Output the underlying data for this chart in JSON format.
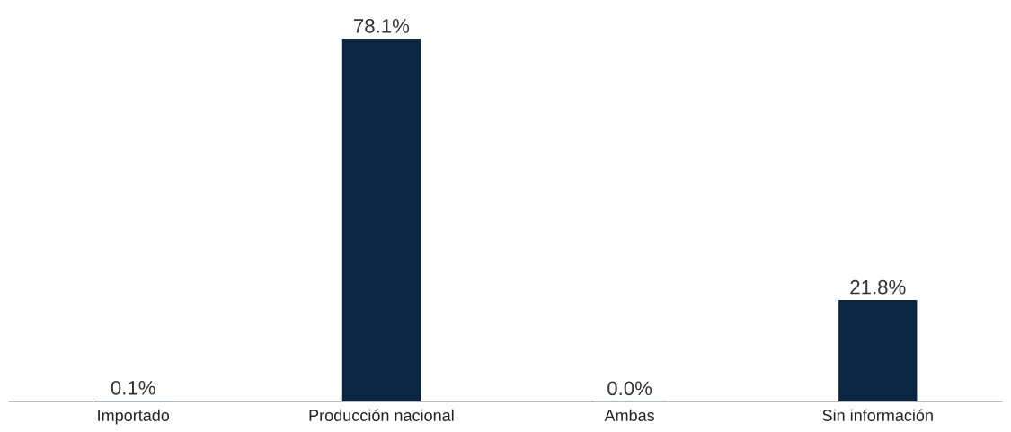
{
  "chart_data": {
    "type": "bar",
    "categories": [
      "Importado",
      "Producción nacional",
      "Ambas",
      "Sin información"
    ],
    "values": [
      0.1,
      78.1,
      0.0,
      21.8
    ],
    "value_labels": [
      "0.1%",
      "78.1%",
      "0.0%",
      "21.8%"
    ],
    "color": "#0b2643",
    "grid": false,
    "legend": false
  }
}
